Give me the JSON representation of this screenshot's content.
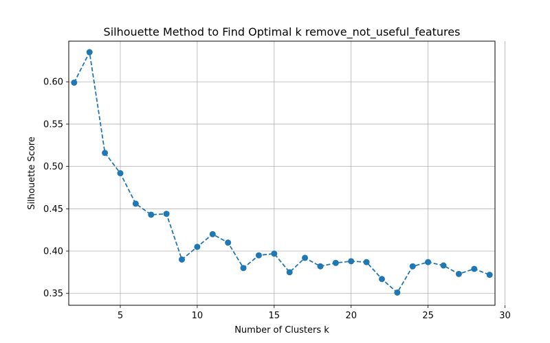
{
  "chart_data": {
    "type": "line",
    "title": "Silhouette Method to Find Optimal k remove_not_useful_features",
    "xlabel": "Number of Clusters k",
    "ylabel": "Silhouette Score",
    "xlim": [
      1.65,
      29.35
    ],
    "ylim": [
      0.336,
      0.648
    ],
    "xticks": [
      5,
      10,
      15,
      20,
      25,
      30
    ],
    "yticks": [
      0.35,
      0.4,
      0.45,
      0.5,
      0.55,
      0.6
    ],
    "xtick_labels": [
      "5",
      "10",
      "15",
      "20",
      "25",
      "30"
    ],
    "ytick_labels": [
      "0.35",
      "0.40",
      "0.45",
      "0.50",
      "0.55",
      "0.60"
    ],
    "grid": true,
    "line_style": "dashed",
    "marker": "circle",
    "color": "#1f77b4",
    "series": [
      {
        "x": [
          2,
          3,
          4,
          5,
          6,
          7,
          8,
          9,
          10,
          11,
          12,
          13,
          14,
          15,
          16,
          17,
          18,
          19,
          20,
          21,
          22,
          23,
          24,
          25,
          26,
          27,
          28,
          29
        ],
        "values": [
          0.599,
          0.635,
          0.516,
          0.492,
          0.456,
          0.443,
          0.444,
          0.39,
          0.405,
          0.42,
          0.41,
          0.38,
          0.395,
          0.397,
          0.375,
          0.392,
          0.382,
          0.386,
          0.388,
          0.387,
          0.367,
          0.351,
          0.382,
          0.387,
          0.383,
          0.373,
          0.379,
          0.372
        ]
      }
    ]
  }
}
